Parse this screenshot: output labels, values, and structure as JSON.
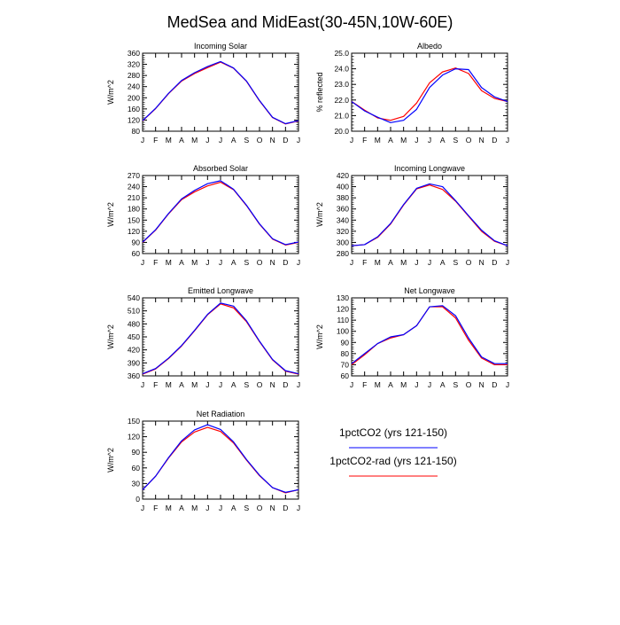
{
  "figure": {
    "title": "MedSea and MidEast(30-45N,10W-60E)",
    "months": [
      "J",
      "F",
      "M",
      "A",
      "M",
      "J",
      "J",
      "A",
      "S",
      "O",
      "N",
      "D",
      "J"
    ]
  },
  "legend": {
    "entries": [
      {
        "label": "1pctCO2 (yrs 121-150)",
        "color": "#0000ff"
      },
      {
        "label": "1pctCO2-rad (yrs 121-150)",
        "color": "#ff0000"
      }
    ]
  },
  "colors": {
    "series_a": "#0000ff",
    "series_b": "#ff0000",
    "axis": "#000000"
  },
  "chart_data": [
    {
      "type": "line",
      "title": "Incoming Solar",
      "ylabel": "W/m^2",
      "ylim": [
        80,
        360
      ],
      "yticks": [
        80,
        120,
        160,
        200,
        240,
        280,
        320,
        360
      ],
      "categories": [
        "J",
        "F",
        "M",
        "A",
        "M",
        "J",
        "J",
        "A",
        "S",
        "O",
        "N",
        "D",
        "J"
      ],
      "series": [
        {
          "name": "1pctCO2 (yrs 121-150)",
          "color": "#0000ff",
          "values": [
            118,
            162,
            216,
            262,
            290,
            312,
            330,
            307,
            260,
            190,
            130,
            107,
            118
          ]
        },
        {
          "name": "1pctCO2-rad (yrs 121-150)",
          "color": "#ff0000",
          "values": [
            117,
            161,
            215,
            260,
            287,
            308,
            328,
            306,
            259,
            189,
            129,
            106,
            117
          ]
        }
      ]
    },
    {
      "type": "line",
      "title": "Albedo",
      "ylabel": "% reflected",
      "ylim": [
        20.0,
        25.0
      ],
      "yticks": [
        "20.0",
        "21.0",
        "22.0",
        "23.0",
        "24.0",
        "25.0"
      ],
      "categories": [
        "J",
        "F",
        "M",
        "A",
        "M",
        "J",
        "J",
        "A",
        "S",
        "O",
        "N",
        "D",
        "J"
      ],
      "series": [
        {
          "name": "1pctCO2 (yrs 121-150)",
          "color": "#0000ff",
          "values": [
            21.9,
            21.3,
            20.9,
            20.55,
            20.7,
            21.4,
            22.8,
            23.6,
            24.0,
            23.95,
            22.8,
            22.2,
            21.9
          ]
        },
        {
          "name": "1pctCO2-rad (yrs 121-150)",
          "color": "#ff0000",
          "values": [
            21.9,
            21.35,
            20.85,
            20.7,
            20.95,
            21.8,
            23.1,
            23.8,
            24.05,
            23.7,
            22.6,
            22.1,
            21.9
          ]
        }
      ]
    },
    {
      "type": "line",
      "title": "Absorbed Solar",
      "ylabel": "W/m^2",
      "ylim": [
        60,
        270
      ],
      "yticks": [
        60,
        90,
        120,
        150,
        180,
        210,
        240,
        270
      ],
      "categories": [
        "J",
        "F",
        "M",
        "A",
        "M",
        "J",
        "J",
        "A",
        "S",
        "O",
        "N",
        "D",
        "J"
      ],
      "series": [
        {
          "name": "1pctCO2 (yrs 121-150)",
          "color": "#0000ff",
          "values": [
            91,
            124,
            168,
            207,
            230,
            248,
            256,
            233,
            190,
            140,
            100,
            84,
            91
          ]
        },
        {
          "name": "1pctCO2-rad (yrs 121-150)",
          "color": "#ff0000",
          "values": [
            90,
            123,
            167,
            205,
            226,
            242,
            252,
            232,
            189,
            139,
            99,
            83,
            90
          ]
        }
      ]
    },
    {
      "type": "line",
      "title": "Incoming Longwave",
      "ylabel": "W/m^2",
      "ylim": [
        280,
        420
      ],
      "yticks": [
        280,
        300,
        320,
        340,
        360,
        380,
        400,
        420
      ],
      "categories": [
        "J",
        "F",
        "M",
        "A",
        "M",
        "J",
        "J",
        "A",
        "S",
        "O",
        "N",
        "D",
        "J"
      ],
      "series": [
        {
          "name": "1pctCO2 (yrs 121-150)",
          "color": "#0000ff",
          "values": [
            294,
            296,
            310,
            334,
            368,
            397,
            405,
            400,
            375,
            348,
            322,
            303,
            294
          ]
        },
        {
          "name": "1pctCO2-rad (yrs 121-150)",
          "color": "#ff0000",
          "values": [
            294,
            296,
            309,
            333,
            367,
            396,
            403,
            395,
            374,
            347,
            320,
            302,
            294
          ]
        }
      ]
    },
    {
      "type": "line",
      "title": "Emitted Longwave",
      "ylabel": "W/m^2",
      "ylim": [
        360,
        540
      ],
      "yticks": [
        360,
        390,
        420,
        450,
        480,
        510,
        540
      ],
      "categories": [
        "J",
        "F",
        "M",
        "A",
        "M",
        "J",
        "J",
        "A",
        "S",
        "O",
        "N",
        "D",
        "J"
      ],
      "series": [
        {
          "name": "1pctCO2 (yrs 121-150)",
          "color": "#0000ff",
          "values": [
            365,
            377,
            401,
            430,
            465,
            502,
            528,
            521,
            487,
            440,
            398,
            372,
            365
          ]
        },
        {
          "name": "1pctCO2-rad (yrs 121-150)",
          "color": "#ff0000",
          "values": [
            364,
            376,
            400,
            429,
            464,
            501,
            526,
            517,
            485,
            439,
            397,
            371,
            364
          ]
        }
      ]
    },
    {
      "type": "line",
      "title": "Net Longwave",
      "ylabel": "W/m^2",
      "ylim": [
        60,
        130
      ],
      "yticks": [
        60,
        70,
        80,
        90,
        100,
        110,
        120,
        130
      ],
      "categories": [
        "J",
        "F",
        "M",
        "A",
        "M",
        "J",
        "J",
        "A",
        "S",
        "O",
        "N",
        "D",
        "J"
      ],
      "series": [
        {
          "name": "1pctCO2 (yrs 121-150)",
          "color": "#0000ff",
          "values": [
            71,
            80,
            89,
            95,
            97,
            105,
            122,
            123,
            114,
            94,
            77,
            71,
            71
          ]
        },
        {
          "name": "1pctCO2-rad (yrs 121-150)",
          "color": "#ff0000",
          "values": [
            70,
            79,
            89,
            94,
            97,
            105,
            122,
            122,
            112,
            92,
            76,
            70,
            70
          ]
        }
      ]
    },
    {
      "type": "line",
      "title": "Net Radiation",
      "ylabel": "W/m^2",
      "ylim": [
        0,
        150
      ],
      "yticks": [
        0,
        30,
        60,
        90,
        120,
        150
      ],
      "categories": [
        "J",
        "F",
        "M",
        "A",
        "M",
        "J",
        "J",
        "A",
        "S",
        "O",
        "N",
        "D",
        "J"
      ],
      "series": [
        {
          "name": "1pctCO2 (yrs 121-150)",
          "color": "#0000ff",
          "values": [
            18,
            44,
            80,
            112,
            133,
            143,
            134,
            110,
            76,
            46,
            22,
            13,
            18
          ]
        },
        {
          "name": "1pctCO2-rad (yrs 121-150)",
          "color": "#ff0000",
          "values": [
            18,
            44,
            79,
            110,
            129,
            138,
            130,
            108,
            75,
            45,
            22,
            12,
            18
          ]
        }
      ]
    }
  ]
}
